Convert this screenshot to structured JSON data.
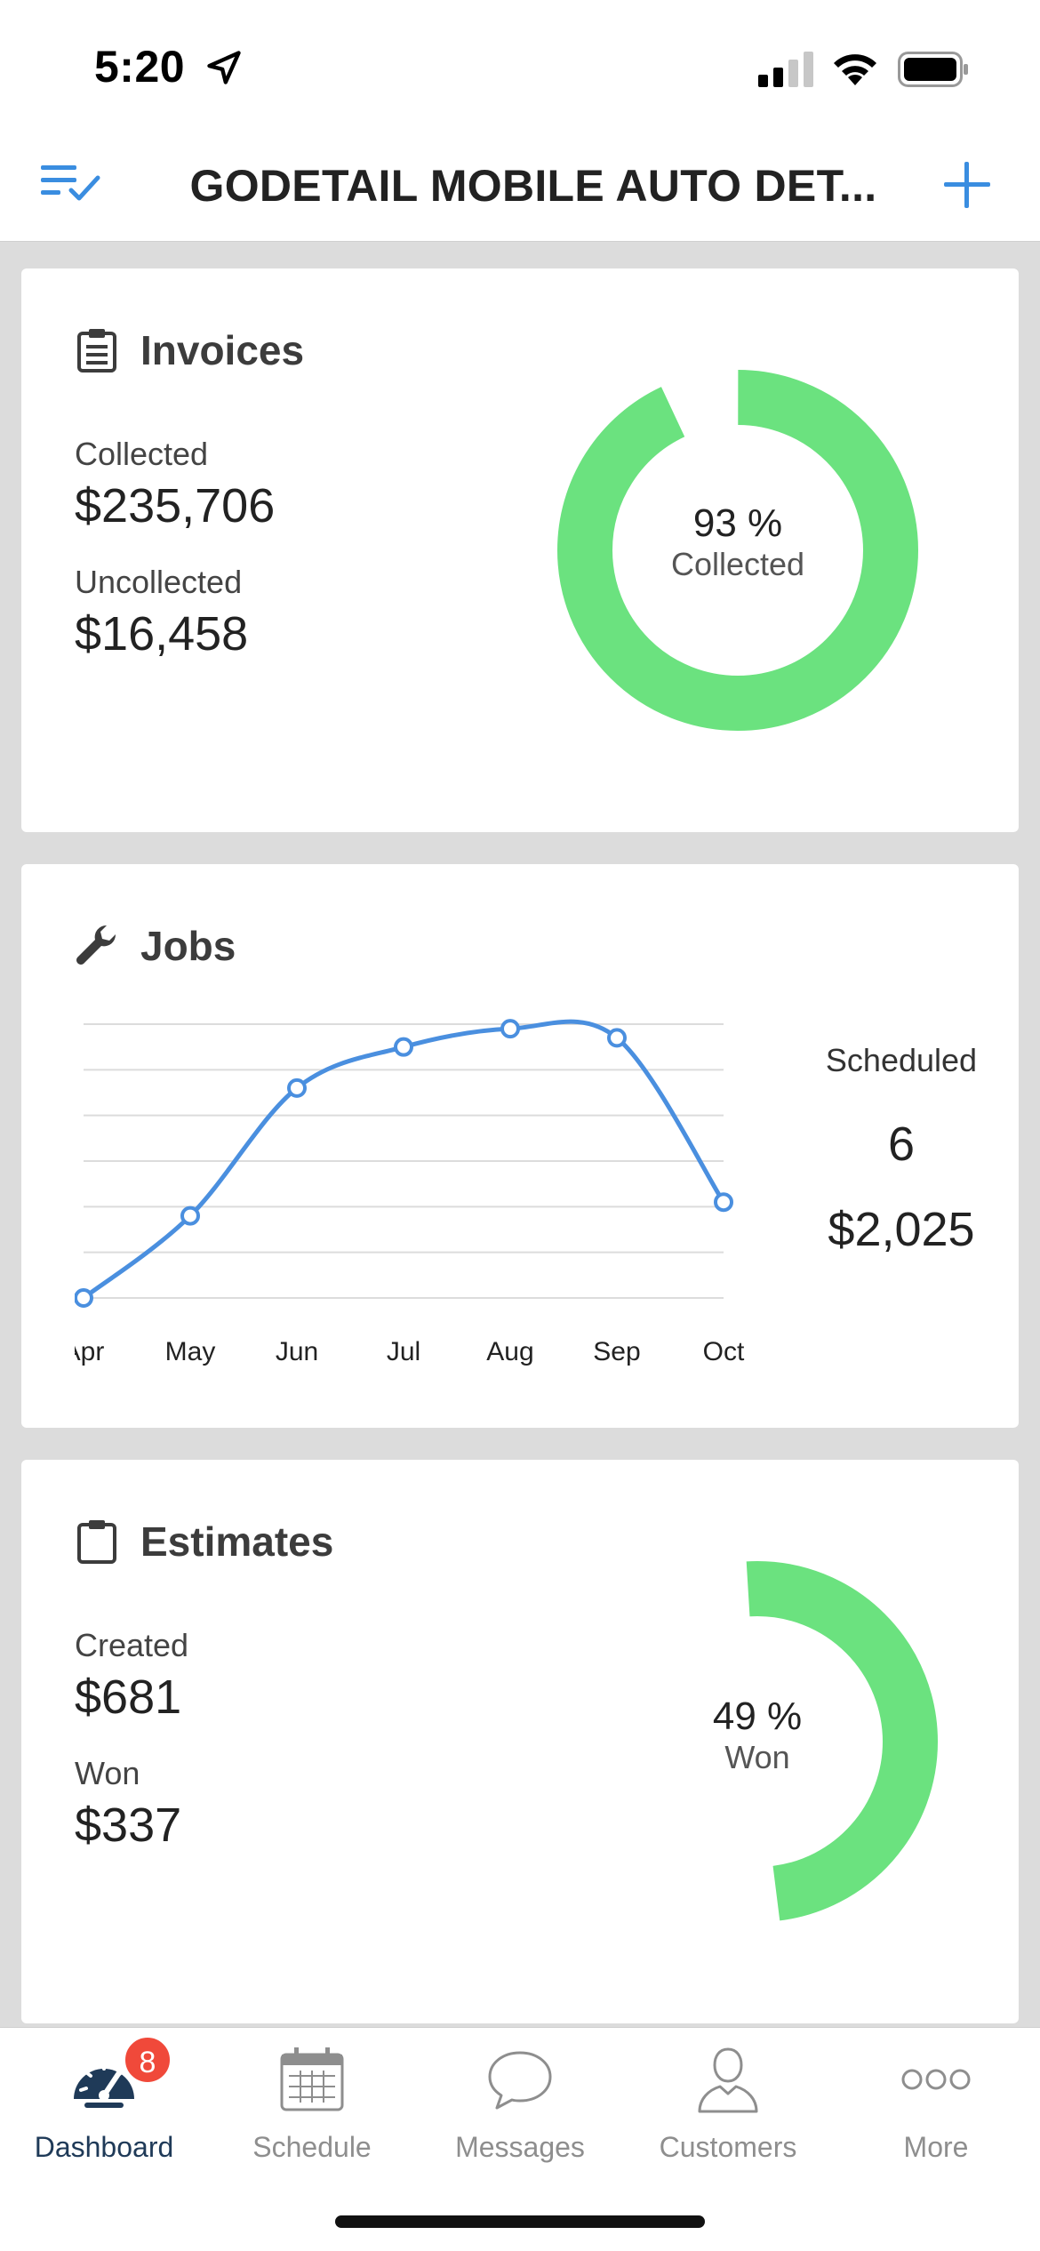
{
  "status_bar": {
    "time": "5:20"
  },
  "header": {
    "title": "GODETAIL MOBILE AUTO DET..."
  },
  "colors": {
    "accent": "#3a8de0",
    "donut_green": "#6be27f",
    "donut_track": "#ffffff",
    "line_blue": "#4a8fdf",
    "badge_red": "#f0493a"
  },
  "invoices": {
    "title": "Invoices",
    "collected_label": "Collected",
    "collected_value": "$235,706",
    "uncollected_label": "Uncollected",
    "uncollected_value": "$16,458",
    "percent_text": "93 %",
    "percent_label": "Collected",
    "percent": 93
  },
  "jobs": {
    "title": "Jobs",
    "scheduled_label": "Scheduled",
    "scheduled_count": "6",
    "scheduled_amount": "$2,025"
  },
  "chart_data": {
    "type": "line",
    "categories": [
      "Apr",
      "May",
      "Jun",
      "Jul",
      "Aug",
      "Sep",
      "Oct"
    ],
    "series": [
      {
        "values": [
          0,
          1.8,
          4.6,
          5.5,
          5.9,
          5.7,
          2.1
        ]
      }
    ],
    "ylim": [
      0,
      6
    ],
    "grid": true,
    "title": "",
    "xlabel": "",
    "ylabel": ""
  },
  "estimates": {
    "title": "Estimates",
    "created_label": "Created",
    "created_value": "$681",
    "won_label": "Won",
    "won_value": "$337",
    "percent_text": "49 %",
    "percent_label": "Won",
    "percent": 49
  },
  "tabs": [
    {
      "label": "Dashboard",
      "icon": "speedometer-icon",
      "active": true,
      "badge": "8"
    },
    {
      "label": "Schedule",
      "icon": "calendar-icon",
      "active": false
    },
    {
      "label": "Messages",
      "icon": "chat-bubble-icon",
      "active": false
    },
    {
      "label": "Customers",
      "icon": "person-icon",
      "active": false
    },
    {
      "label": "More",
      "icon": "more-dots-icon",
      "active": false
    }
  ]
}
